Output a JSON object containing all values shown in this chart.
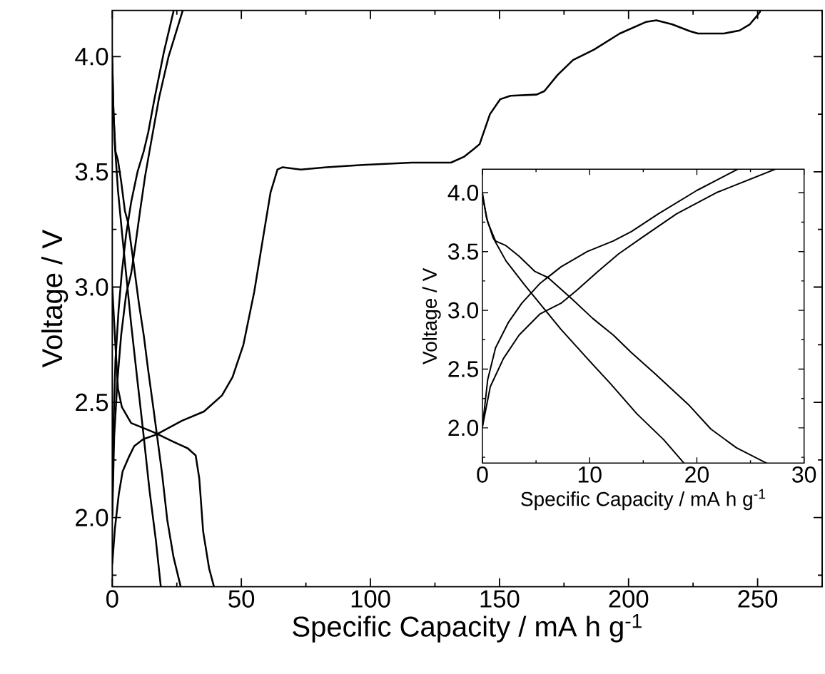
{
  "chart_data": [
    {
      "type": "line",
      "xlabel": "Specific Capacity / mA h g$^{-1}$",
      "ylabel": "Voltage / V",
      "xlim": [
        0,
        275
      ],
      "ylim": [
        1.7,
        4.2
      ],
      "xticks": [
        0,
        {
          "value": 25,
          "label": null
        },
        50,
        {
          "value": 75,
          "label": null
        },
        100,
        {
          "value": 125,
          "label": null
        },
        150,
        {
          "value": 175,
          "label": null
        },
        200,
        {
          "value": 225,
          "label": null
        },
        250,
        {
          "value": 275,
          "label": null
        }
      ],
      "yticks": [
        {
          "value": 1.75,
          "label": null
        },
        {
          "value": 2,
          "label": "2.0"
        },
        {
          "value": 2.25,
          "label": null
        },
        {
          "value": 2.5,
          "label": "2.5"
        },
        {
          "value": 2.75,
          "label": null
        },
        {
          "value": 3,
          "label": "3.0"
        },
        {
          "value": 3.25,
          "label": null
        },
        {
          "value": 3.5,
          "label": "3.5"
        },
        {
          "value": 3.75,
          "label": null
        },
        {
          "value": 4,
          "label": "4.0"
        }
      ],
      "series": [
        {
          "color": "#000000",
          "x": [
            0,
            0.37,
            0.98,
            2.2,
            3.9,
            5.6,
            7.3,
            9.78,
            12.0,
            14.4,
            16.9,
            18.8
          ],
          "values": [
            4.0,
            3.79,
            3.62,
            3.42,
            3.22,
            3.03,
            2.84,
            2.59,
            2.37,
            2.12,
            1.9,
            1.7
          ]
        },
        {
          "color": "#000000",
          "x": [
            0,
            0.49,
            1.22,
            2.2,
            3.42,
            4.9,
            6.1,
            8.3,
            10.3,
            12.2,
            13.9,
            16.1,
            19.3,
            21.3,
            23.7,
            26.5
          ],
          "values": [
            3.97,
            3.75,
            3.59,
            3.55,
            3.46,
            3.33,
            3.28,
            3.1,
            2.93,
            2.79,
            2.64,
            2.46,
            2.19,
            1.99,
            1.83,
            1.7
          ]
        },
        {
          "color": "#000000",
          "x": [
            0,
            0.49,
            1.22,
            2.44,
            3.67,
            5.38,
            7.33,
            9.78,
            12.2,
            13.9,
            16.4,
            20.0,
            23.8
          ],
          "values": [
            2.01,
            2.41,
            2.68,
            2.9,
            3.06,
            3.23,
            3.37,
            3.5,
            3.59,
            3.67,
            3.82,
            4.02,
            4.2
          ]
        },
        {
          "color": "#000000",
          "x": [
            0,
            0.73,
            1.96,
            3.42,
            5.38,
            7.33,
            8.8,
            10.76,
            12.7,
            14.9,
            18.1,
            21.8,
            27.3
          ],
          "values": [
            2.01,
            2.35,
            2.59,
            2.79,
            2.97,
            3.06,
            3.17,
            3.33,
            3.48,
            3.62,
            3.82,
            4.0,
            4.2
          ]
        },
        {
          "color": "#000000",
          "x": [
            0,
            1,
            2.5,
            4,
            6.3,
            8.5,
            12,
            17,
            27,
            35.5,
            42.5,
            46.6,
            50.8,
            55,
            58.5,
            61.3,
            64,
            66,
            73,
            83,
            97,
            116,
            131.2,
            136.2,
            140.2,
            142.3,
            146.3,
            150.3,
            154.3,
            164.4,
            167.4,
            172.5,
            178.5,
            186.6,
            196.6,
            206.7,
            210.8,
            216.8,
            223.8,
            226.9,
            236.9,
            243,
            247,
            250,
            251
          ],
          "values": [
            1.8,
            1.95,
            2.1,
            2.2,
            2.26,
            2.31,
            2.34,
            2.36,
            2.42,
            2.46,
            2.53,
            2.61,
            2.75,
            2.98,
            3.22,
            3.41,
            3.51,
            3.52,
            3.51,
            3.52,
            3.53,
            3.54,
            3.54,
            3.565,
            3.6,
            3.62,
            3.75,
            3.815,
            3.83,
            3.835,
            3.85,
            3.92,
            3.985,
            4.03,
            4.1,
            4.15,
            4.157,
            4.14,
            4.11,
            4.1,
            4.1,
            4.113,
            4.14,
            4.18,
            4.196
          ]
        },
        {
          "color": "#000000",
          "x": [
            0,
            1.2,
            2.2,
            3.7,
            7.3,
            16.1,
            23.5,
            29.3,
            32.3,
            33.7,
            35.2,
            37.5,
            39.4
          ],
          "values": [
            3.0,
            2.75,
            2.56,
            2.48,
            2.41,
            2.37,
            2.33,
            2.3,
            2.27,
            2.17,
            1.94,
            1.78,
            1.7
          ]
        }
      ]
    },
    {
      "type": "line",
      "xlabel": "Specific Capacity / mA h g$^{-1}$",
      "ylabel": "Voltage / V",
      "xlim": [
        0,
        30
      ],
      "ylim": [
        1.7,
        4.2
      ],
      "xticks": [
        0,
        {
          "value": 5,
          "label": null
        },
        10,
        {
          "value": 15,
          "label": null
        },
        20,
        {
          "value": 25,
          "label": null
        },
        30
      ],
      "yticks": [
        {
          "value": 1.75,
          "label": null
        },
        {
          "value": 2,
          "label": "2.0"
        },
        {
          "value": 2.25,
          "label": null
        },
        {
          "value": 2.5,
          "label": "2.5"
        },
        {
          "value": 2.75,
          "label": null
        },
        {
          "value": 3,
          "label": "3.0"
        },
        {
          "value": 3.25,
          "label": null
        },
        {
          "value": 3.5,
          "label": "3.5"
        },
        {
          "value": 3.75,
          "label": null
        },
        {
          "value": 4,
          "label": "4.0"
        }
      ],
      "series": [
        {
          "color": "#000000",
          "x": [
            0,
            0.37,
            0.98,
            2.2,
            3.9,
            5.6,
            7.3,
            9.78,
            12.0,
            14.4,
            16.9,
            18.8
          ],
          "values": [
            4.0,
            3.79,
            3.62,
            3.42,
            3.22,
            3.03,
            2.84,
            2.59,
            2.37,
            2.12,
            1.9,
            1.7
          ]
        },
        {
          "color": "#000000",
          "x": [
            0,
            0.49,
            1.22,
            2.2,
            3.42,
            4.9,
            6.1,
            8.3,
            10.3,
            12.2,
            13.9,
            16.1,
            19.3,
            21.3,
            23.7,
            26.5
          ],
          "values": [
            3.97,
            3.75,
            3.59,
            3.55,
            3.46,
            3.33,
            3.28,
            3.1,
            2.93,
            2.79,
            2.64,
            2.46,
            2.19,
            1.99,
            1.83,
            1.7
          ]
        },
        {
          "color": "#000000",
          "x": [
            0,
            0.49,
            1.22,
            2.44,
            3.67,
            5.38,
            7.33,
            9.78,
            12.2,
            13.9,
            16.4,
            20.0,
            23.8
          ],
          "values": [
            2.01,
            2.41,
            2.68,
            2.9,
            3.06,
            3.23,
            3.37,
            3.5,
            3.59,
            3.67,
            3.82,
            4.02,
            4.2
          ]
        },
        {
          "color": "#000000",
          "x": [
            0,
            0.73,
            1.96,
            3.42,
            5.38,
            7.33,
            8.8,
            10.76,
            12.7,
            14.9,
            18.1,
            21.8,
            27.3
          ],
          "values": [
            2.01,
            2.35,
            2.59,
            2.79,
            2.97,
            3.06,
            3.17,
            3.33,
            3.48,
            3.62,
            3.82,
            4.0,
            4.2
          ]
        }
      ]
    }
  ]
}
